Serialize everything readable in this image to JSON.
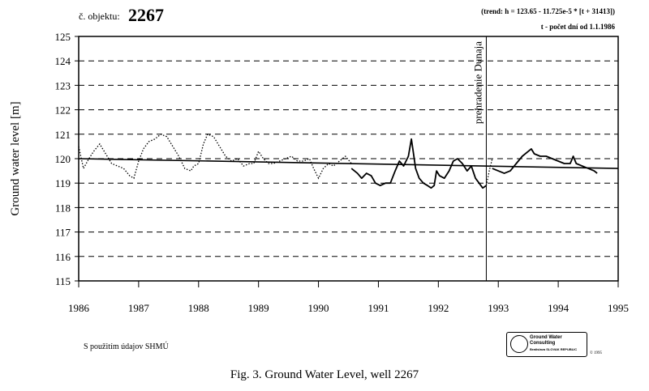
{
  "header": {
    "object_label": "č. objektu:",
    "object_number": "2267",
    "trend_formula": "(trend: h = 123.65 - 11.725e-5 * [t + 31413])",
    "t_definition": "t - počet dní od 1.1.1986"
  },
  "footer": {
    "source_note": "S použitím údajov SHMÚ",
    "caption": "Fig. 3. Ground Water Level, well 2267",
    "logo_text": [
      "Ground Water",
      "Consulting",
      "Bratislava  SLOVAK REPUBLIC"
    ],
    "copyright": "© 1995"
  },
  "chart_data": {
    "type": "line",
    "title": "",
    "xlabel": "",
    "ylabel": "Ground water level [m]",
    "xlim": [
      1986,
      1995
    ],
    "ylim": [
      115,
      125
    ],
    "x_ticks": [
      1986,
      1987,
      1988,
      1989,
      1990,
      1991,
      1992,
      1993,
      1994,
      1995
    ],
    "y_ticks": [
      115,
      116,
      117,
      118,
      119,
      120,
      121,
      122,
      123,
      124,
      125
    ],
    "grid": "horizontal dashed",
    "annotation": {
      "x": 1992.8,
      "text": "prehradenie Dunaja"
    },
    "trend": {
      "x": [
        1986,
        1995
      ],
      "y": [
        120.0,
        119.6
      ]
    },
    "series": [
      {
        "style": "dotted",
        "x": [
          1986.0,
          1986.08,
          1986.17,
          1986.25,
          1986.35,
          1986.45,
          1986.55,
          1986.65,
          1986.75,
          1986.85,
          1986.92,
          1987.0,
          1987.08,
          1987.17,
          1987.27,
          1987.37,
          1987.47,
          1987.57,
          1987.67,
          1987.77,
          1987.87,
          1987.92,
          1988.0,
          1988.08,
          1988.15,
          1988.25,
          1988.35,
          1988.45,
          1988.55,
          1988.65,
          1988.75,
          1988.85,
          1988.92,
          1989.0,
          1989.08,
          1989.17,
          1989.25,
          1989.35,
          1989.45,
          1989.55,
          1989.65,
          1989.75,
          1989.85,
          1989.92,
          1990.0,
          1990.08,
          1990.17,
          1990.25,
          1990.35,
          1990.45,
          1990.55
        ],
        "y": [
          120.5,
          119.6,
          120.0,
          120.3,
          120.6,
          120.2,
          119.8,
          119.7,
          119.6,
          119.3,
          119.2,
          119.9,
          120.4,
          120.7,
          120.8,
          121.0,
          120.9,
          120.5,
          120.1,
          119.6,
          119.5,
          119.7,
          119.8,
          120.6,
          121.0,
          120.9,
          120.5,
          120.1,
          119.9,
          120.0,
          119.7,
          119.8,
          119.8,
          120.3,
          120.0,
          119.8,
          119.8,
          119.9,
          120.0,
          120.1,
          119.9,
          119.9,
          120.0,
          119.6,
          119.2,
          119.6,
          119.8,
          119.7,
          119.9,
          120.1,
          119.8
        ]
      },
      {
        "style": "solid",
        "x": [
          1990.55,
          1990.65,
          1990.72,
          1990.8,
          1990.88,
          1990.95,
          1991.03,
          1991.12,
          1991.2,
          1991.28,
          1991.35,
          1991.42,
          1991.5,
          1991.55,
          1991.58,
          1991.62,
          1991.68,
          1991.75,
          1991.82,
          1991.88,
          1991.93,
          1991.97,
          1992.02,
          1992.1,
          1992.18,
          1992.25,
          1992.32,
          1992.4,
          1992.48,
          1992.55,
          1992.62,
          1992.68,
          1992.74,
          1992.8
        ],
        "y": [
          119.6,
          119.4,
          119.2,
          119.4,
          119.3,
          119.0,
          118.9,
          119.0,
          119.0,
          119.5,
          119.9,
          119.7,
          120.1,
          120.8,
          120.3,
          119.6,
          119.2,
          119.0,
          118.9,
          118.8,
          118.9,
          119.5,
          119.3,
          119.2,
          119.5,
          119.9,
          120.0,
          119.8,
          119.5,
          119.7,
          119.2,
          119.0,
          118.8,
          118.9
        ]
      },
      {
        "style": "dotted",
        "x": [
          1992.8,
          1992.85,
          1992.9
        ],
        "y": [
          118.9,
          119.5,
          120.0
        ]
      },
      {
        "style": "solid",
        "x": [
          1992.9,
          1993.0,
          1993.1,
          1993.2,
          1993.3,
          1993.4,
          1993.5,
          1993.55,
          1993.6,
          1993.7,
          1993.8,
          1993.9,
          1994.0,
          1994.1,
          1994.2,
          1994.25,
          1994.3,
          1994.4,
          1994.5,
          1994.6,
          1994.65
        ],
        "y": [
          119.6,
          119.5,
          119.4,
          119.5,
          119.8,
          120.1,
          120.3,
          120.4,
          120.2,
          120.1,
          120.1,
          120.0,
          119.9,
          119.8,
          119.8,
          120.1,
          119.8,
          119.7,
          119.6,
          119.5,
          119.4
        ]
      }
    ]
  }
}
